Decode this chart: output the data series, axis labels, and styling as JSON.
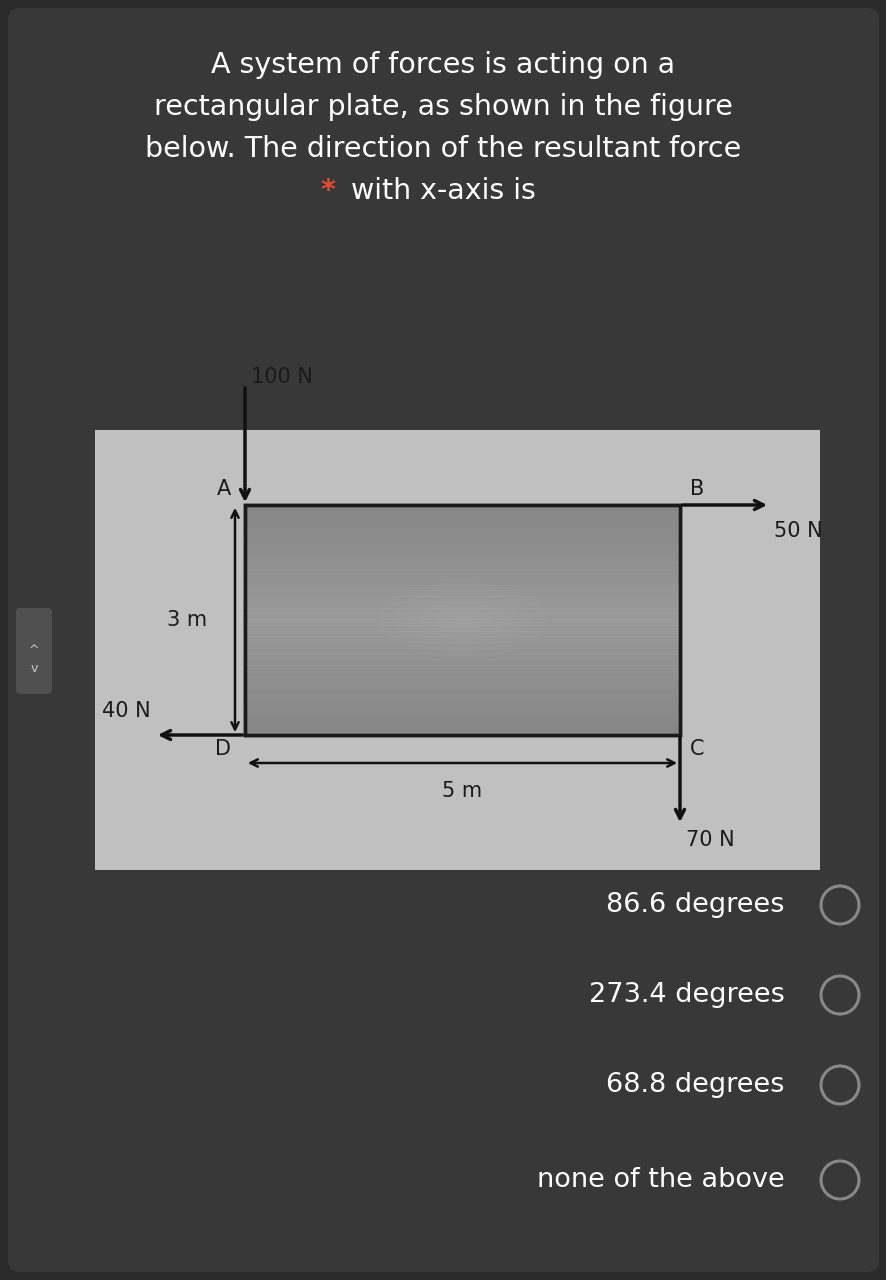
{
  "bg_color": "#2b2b2b",
  "card_color": "#383838",
  "title_lines": [
    "A system of forces is acting on a",
    "rectangular plate, as shown in the figure",
    "below. The direction of the resultant force"
  ],
  "title_line4_text": "with x-axis is",
  "title_line4_star": "*",
  "title_color": "#ffffff",
  "star_color": "#e84a2e",
  "title_fontsize": 20.5,
  "diagram_bg": "#c0c0c0",
  "plate_color": "#909090",
  "plate_edge": "#1a1a1a",
  "forces": {
    "100N": "100 N",
    "50N": "50 N",
    "40N": "40 N",
    "70N": "70 N",
    "3m": "3 m",
    "5m": "5 m"
  },
  "corners": [
    "A",
    "B",
    "C",
    "D"
  ],
  "options": [
    "86.6 degrees",
    "273.4 degrees",
    "68.8 degrees",
    "none of the above"
  ],
  "option_color": "#ffffff",
  "option_fontsize": 19.5,
  "circle_edge_color": "#888888",
  "arrow_color": "#111111",
  "label_color": "#1a1a1a",
  "label_fontsize": 15
}
